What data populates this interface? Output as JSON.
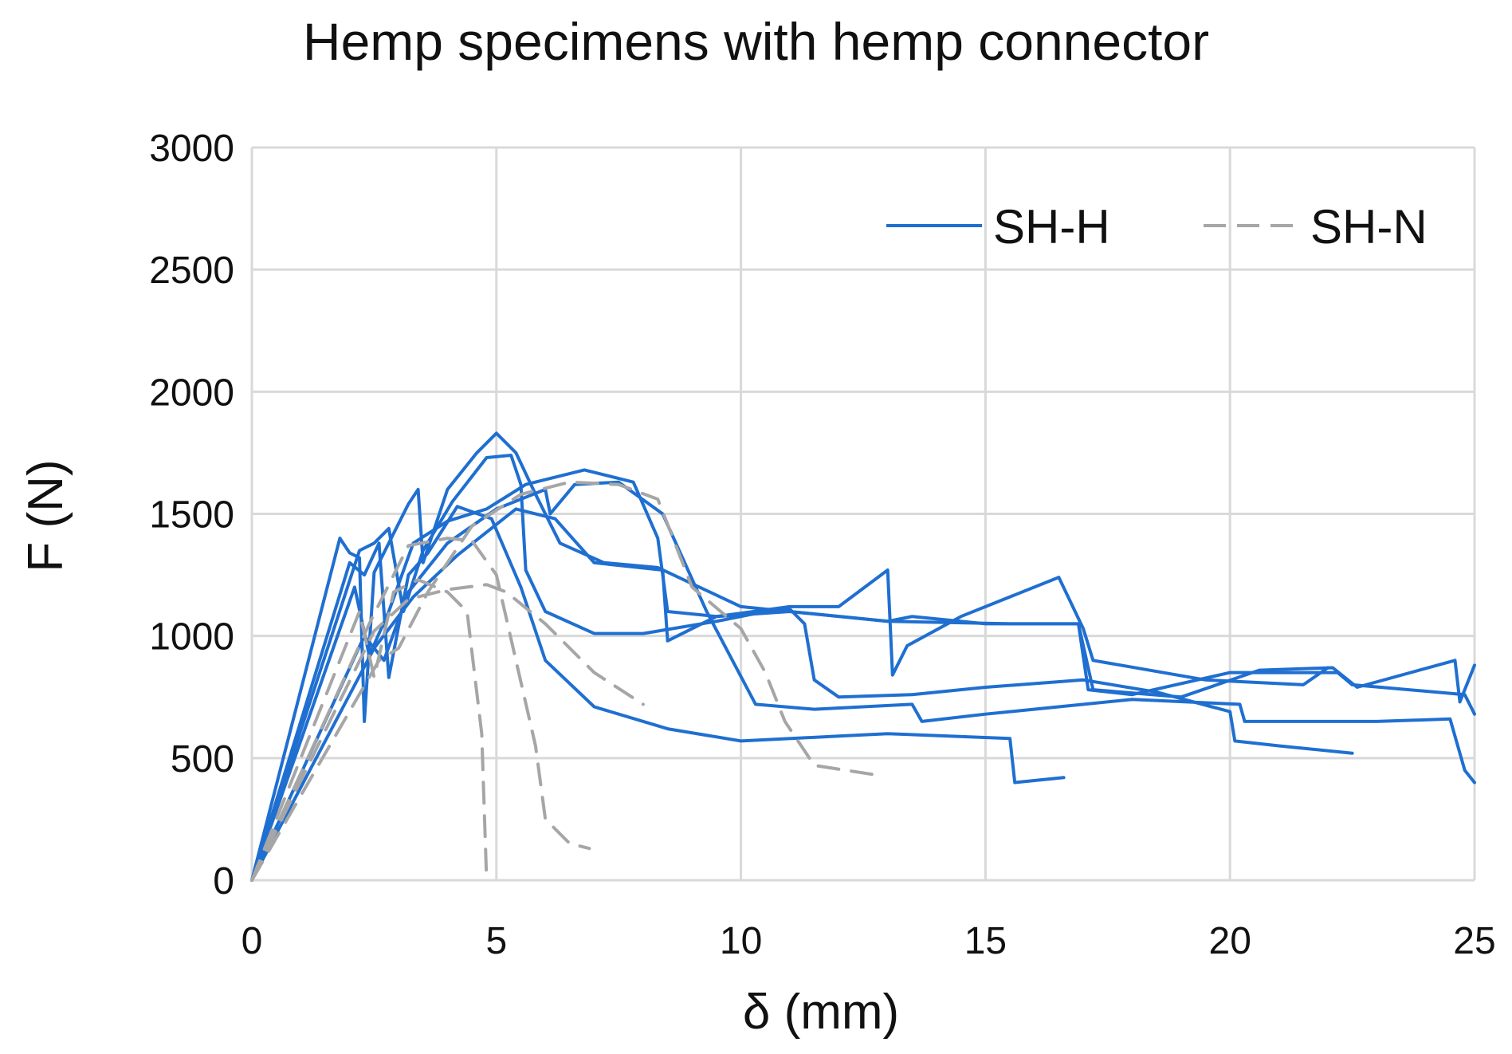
{
  "chart_data": {
    "type": "line",
    "title": "Hemp specimens with hemp connector",
    "xlabel": "δ (mm)",
    "ylabel": "F (N)",
    "xlim": [
      0,
      25
    ],
    "ylim": [
      0,
      3000
    ],
    "x_ticks": [
      0,
      5,
      10,
      15,
      20,
      25
    ],
    "y_ticks": [
      0,
      500,
      1000,
      1500,
      2000,
      2500,
      3000
    ],
    "grid": true,
    "legend_position": "top-right",
    "colors": {
      "SH-H": "#1f6fd1",
      "SH-N": "#a6a6a6",
      "grid": "#d9d9d9"
    },
    "legend": [
      {
        "name": "SH-H",
        "style": "solid"
      },
      {
        "name": "SH-N",
        "style": "dashed"
      }
    ],
    "series": [
      {
        "group": "SH-H",
        "points": [
          [
            0,
            0
          ],
          [
            1.8,
            1400
          ],
          [
            2.0,
            1340
          ],
          [
            2.2,
            1320
          ],
          [
            2.3,
            650
          ],
          [
            2.5,
            1260
          ],
          [
            2.9,
            1420
          ],
          [
            3.2,
            1540
          ],
          [
            3.4,
            1600
          ],
          [
            3.5,
            1300
          ],
          [
            4.0,
            1600
          ],
          [
            4.6,
            1750
          ],
          [
            5.0,
            1830
          ],
          [
            5.4,
            1750
          ],
          [
            5.8,
            1580
          ],
          [
            6.3,
            1380
          ],
          [
            7.2,
            1300
          ],
          [
            8.3,
            1280
          ],
          [
            10,
            1120
          ],
          [
            13,
            1060
          ],
          [
            15.5,
            1050
          ],
          [
            16.9,
            1050
          ],
          [
            17.1,
            780
          ],
          [
            18,
            760
          ],
          [
            20,
            850
          ],
          [
            22.2,
            850
          ],
          [
            22.5,
            800
          ],
          [
            24.8,
            760
          ],
          [
            25,
            680
          ]
        ]
      },
      {
        "group": "SH-H",
        "points": [
          [
            0,
            0
          ],
          [
            2.0,
            1300
          ],
          [
            2.3,
            1250
          ],
          [
            2.6,
            1380
          ],
          [
            2.8,
            830
          ],
          [
            3.2,
            1250
          ],
          [
            3.6,
            1340
          ],
          [
            4.2,
            1530
          ],
          [
            4.9,
            1480
          ],
          [
            5.5,
            1200
          ],
          [
            6.0,
            900
          ],
          [
            7.0,
            710
          ],
          [
            8.5,
            620
          ],
          [
            10,
            570
          ],
          [
            12,
            590
          ],
          [
            13,
            600
          ],
          [
            15.5,
            580
          ],
          [
            15.6,
            400
          ],
          [
            16.6,
            420
          ]
        ]
      },
      {
        "group": "SH-H",
        "points": [
          [
            0,
            0
          ],
          [
            2.2,
            1350
          ],
          [
            2.5,
            1380
          ],
          [
            2.8,
            1440
          ],
          [
            3.1,
            1100
          ],
          [
            3.5,
            1350
          ],
          [
            4.1,
            1550
          ],
          [
            4.8,
            1730
          ],
          [
            5.3,
            1740
          ],
          [
            5.5,
            1620
          ],
          [
            5.6,
            1270
          ],
          [
            6.0,
            1100
          ],
          [
            7.0,
            1010
          ],
          [
            8.0,
            1010
          ],
          [
            9.5,
            1060
          ],
          [
            10.5,
            1100
          ],
          [
            11,
            1110
          ],
          [
            11.3,
            1050
          ],
          [
            11.5,
            820
          ],
          [
            12,
            750
          ],
          [
            13.5,
            760
          ],
          [
            15,
            790
          ],
          [
            17,
            820
          ],
          [
            18.5,
            770
          ],
          [
            20,
            690
          ],
          [
            20.1,
            570
          ],
          [
            21,
            550
          ],
          [
            22.5,
            520
          ]
        ]
      },
      {
        "group": "SH-H",
        "points": [
          [
            0,
            0
          ],
          [
            2.1,
            1200
          ],
          [
            2.4,
            920
          ],
          [
            2.8,
            1100
          ],
          [
            3.3,
            1380
          ],
          [
            4.0,
            1470
          ],
          [
            4.8,
            1520
          ],
          [
            5.6,
            1620
          ],
          [
            6.0,
            1640
          ],
          [
            6.8,
            1680
          ],
          [
            7.8,
            1630
          ],
          [
            8.3,
            1400
          ],
          [
            8.5,
            1100
          ],
          [
            9.5,
            1080
          ],
          [
            11,
            1100
          ],
          [
            13,
            1060
          ],
          [
            13.5,
            1080
          ],
          [
            15,
            1050
          ],
          [
            16.9,
            1050
          ],
          [
            17.2,
            780
          ],
          [
            19,
            750
          ],
          [
            20.6,
            860
          ],
          [
            22.1,
            870
          ],
          [
            22.6,
            790
          ],
          [
            24.6,
            900
          ],
          [
            24.7,
            730
          ],
          [
            25,
            880
          ]
        ]
      },
      {
        "group": "SH-H",
        "points": [
          [
            0,
            0
          ],
          [
            2.3,
            1000
          ],
          [
            2.7,
            900
          ],
          [
            3.2,
            1180
          ],
          [
            4.0,
            1380
          ],
          [
            5.0,
            1520
          ],
          [
            6.0,
            1600
          ],
          [
            6.1,
            1500
          ],
          [
            6.6,
            1620
          ],
          [
            7.5,
            1630
          ],
          [
            8.4,
            1500
          ],
          [
            9.3,
            1100
          ],
          [
            10.3,
            720
          ],
          [
            11.5,
            700
          ],
          [
            13.5,
            720
          ],
          [
            13.7,
            650
          ],
          [
            15,
            680
          ],
          [
            18,
            740
          ],
          [
            20.2,
            720
          ],
          [
            20.3,
            650
          ],
          [
            23,
            650
          ],
          [
            24.5,
            660
          ],
          [
            24.8,
            450
          ],
          [
            25,
            400
          ]
        ]
      },
      {
        "group": "SH-H",
        "points": [
          [
            0,
            0
          ],
          [
            2.5,
            950
          ],
          [
            3.3,
            1160
          ],
          [
            4.2,
            1330
          ],
          [
            5.4,
            1520
          ],
          [
            6.2,
            1480
          ],
          [
            7.0,
            1300
          ],
          [
            8.4,
            1270
          ],
          [
            8.5,
            980
          ],
          [
            9.5,
            1080
          ],
          [
            11,
            1120
          ],
          [
            12,
            1120
          ],
          [
            13,
            1270
          ],
          [
            13.1,
            840
          ],
          [
            13.4,
            960
          ],
          [
            14.5,
            1080
          ],
          [
            16.5,
            1240
          ],
          [
            17.0,
            1030
          ],
          [
            17.2,
            900
          ],
          [
            19.5,
            820
          ],
          [
            21.5,
            800
          ],
          [
            22,
            870
          ]
        ]
      },
      {
        "group": "SH-N",
        "points": [
          [
            0,
            0
          ],
          [
            2.2,
            1100
          ],
          [
            2.5,
            830
          ],
          [
            2.9,
            1180
          ],
          [
            3.4,
            1230
          ],
          [
            4.0,
            1180
          ],
          [
            4.4,
            1100
          ],
          [
            4.7,
            600
          ],
          [
            4.8,
            0
          ]
        ]
      },
      {
        "group": "SH-N",
        "points": [
          [
            0,
            0
          ],
          [
            2.4,
            1050
          ],
          [
            3.2,
            1370
          ],
          [
            4.0,
            1400
          ],
          [
            4.5,
            1390
          ],
          [
            5.0,
            1250
          ],
          [
            5.4,
            900
          ],
          [
            5.8,
            550
          ],
          [
            6.0,
            250
          ],
          [
            6.5,
            150
          ],
          [
            6.9,
            130
          ]
        ]
      },
      {
        "group": "SH-N",
        "points": [
          [
            0,
            0
          ],
          [
            2.5,
            1020
          ],
          [
            3.2,
            1150
          ],
          [
            4.0,
            1190
          ],
          [
            4.8,
            1210
          ],
          [
            5.2,
            1180
          ],
          [
            6.0,
            1050
          ],
          [
            7.0,
            850
          ],
          [
            8.0,
            720
          ]
        ]
      },
      {
        "group": "SH-N",
        "points": [
          [
            0,
            0
          ],
          [
            2.6,
            900
          ],
          [
            3.0,
            950
          ],
          [
            3.6,
            1180
          ],
          [
            4.5,
            1450
          ],
          [
            5.5,
            1580
          ],
          [
            6.5,
            1630
          ],
          [
            7.5,
            1620
          ],
          [
            8.3,
            1560
          ],
          [
            9.0,
            1200
          ],
          [
            10.0,
            1030
          ],
          [
            10.5,
            850
          ],
          [
            10.9,
            650
          ],
          [
            11.5,
            470
          ],
          [
            12.8,
            430
          ]
        ]
      }
    ]
  }
}
